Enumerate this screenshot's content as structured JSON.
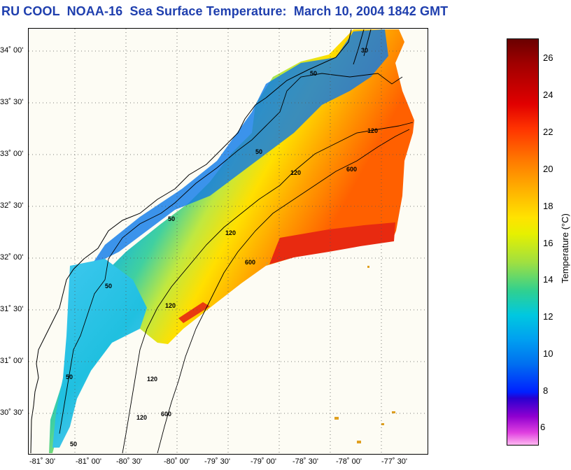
{
  "title": "RU COOL  NOAA-16  Sea Surface Temperature:  March 10, 2004 1842 GMT",
  "lat_labels": [
    "34˚ 00'",
    "33˚ 30'",
    "33˚ 00'",
    "32˚ 30'",
    "32˚ 00'",
    "31˚ 30'",
    "31˚ 00'",
    "30˚ 30'"
  ],
  "lon_labels": [
    "-81˚ 30'",
    "-81˚ 00'",
    "-80˚ 30'",
    "-80˚ 00'",
    "-79˚ 30'",
    "-79˚ 00'",
    "-78˚ 30'",
    "-78˚ 00'",
    "-77˚ 30'"
  ],
  "colorbar": {
    "label": "Temperature (°C)",
    "ticks": [
      "26",
      "24",
      "22",
      "20",
      "18",
      "16",
      "14",
      "12",
      "10",
      "8",
      "6"
    ],
    "range": [
      5,
      27
    ]
  },
  "contours": {
    "labels": [
      "50",
      "50",
      "50",
      "50",
      "50",
      "50",
      "120",
      "120",
      "120",
      "120",
      "120",
      "120",
      "600",
      "600",
      "600",
      "30"
    ]
  },
  "colors": {
    "title": "#1f3fae",
    "coast": "#000000",
    "grid": "#555555",
    "background": "#fdfcf4"
  }
}
